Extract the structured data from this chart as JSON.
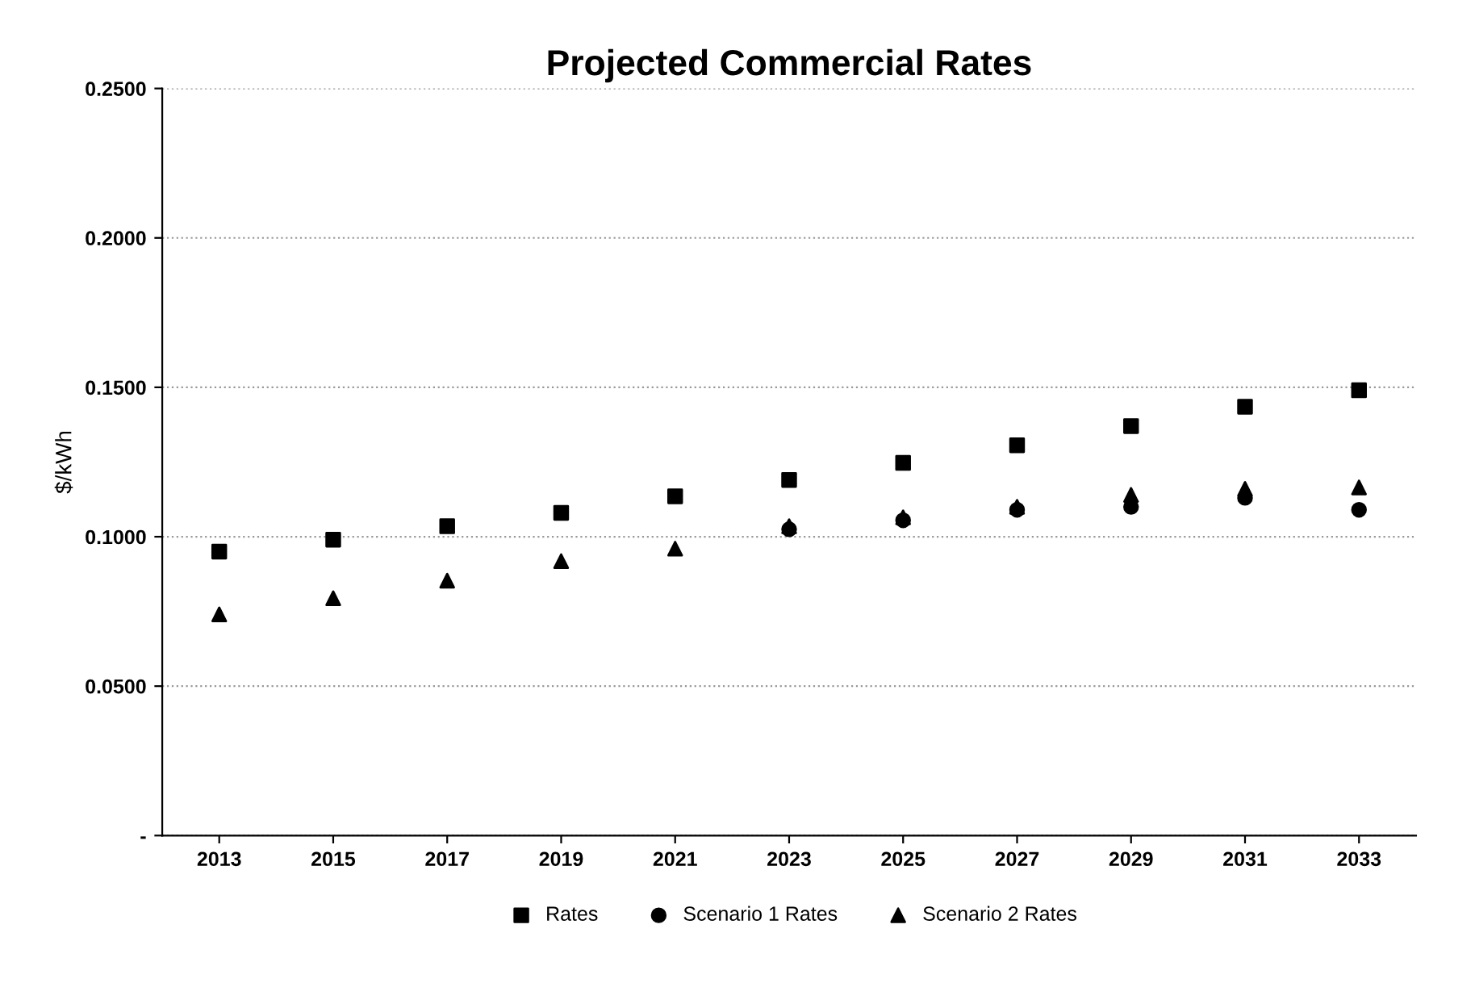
{
  "chart_data": {
    "type": "scatter",
    "title": "Projected Commercial Rates",
    "ylabel": "$/kWh",
    "categories": [
      "2013",
      "2015",
      "2017",
      "2019",
      "2021",
      "2023",
      "2025",
      "2027",
      "2029",
      "2031",
      "2033"
    ],
    "series": [
      {
        "name": "Rates",
        "color": "#000000",
        "marker": "square",
        "values": [
          0.095,
          0.099,
          0.1035,
          0.108,
          0.1135,
          0.119,
          0.1247,
          0.1306,
          0.137,
          0.1435,
          0.149
        ]
      },
      {
        "name": "Scenario 1 Rates",
        "color": "#000000",
        "marker": "circle",
        "values": [
          null,
          null,
          null,
          null,
          null,
          0.1025,
          0.1055,
          0.109,
          0.11,
          0.113,
          0.109
        ]
      },
      {
        "name": "Scenario 2 Rates",
        "color": "#000000",
        "marker": "triangle",
        "values": [
          0.074,
          0.0794,
          0.0853,
          0.0918,
          0.096,
          0.1035,
          0.1065,
          0.11,
          0.114,
          0.116,
          0.1165
        ]
      }
    ],
    "ylim": [
      0,
      0.25
    ],
    "yticks": [
      {
        "value": 0,
        "label": "-"
      },
      {
        "value": 0.05,
        "label": "0.0500"
      },
      {
        "value": 0.1,
        "label": "0.1000"
      },
      {
        "value": 0.15,
        "label": "0.1500"
      },
      {
        "value": 0.2,
        "label": "0.2000"
      },
      {
        "value": 0.25,
        "label": "0.2500"
      }
    ],
    "grid": "y",
    "legend": "bottom"
  }
}
